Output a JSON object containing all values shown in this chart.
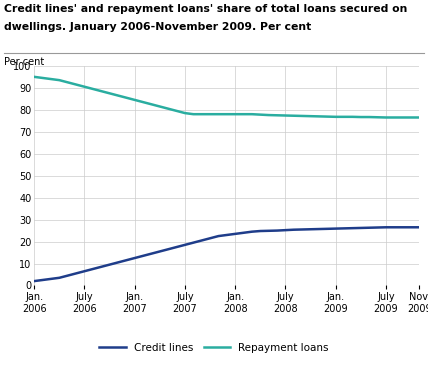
{
  "title_line1": "Credit lines' and repayment loans' share of total loans secured on",
  "title_line2": "dwellings. January 2006-November 2009. Per cent",
  "ylabel": "Per cent",
  "ylim": [
    0,
    100
  ],
  "yticks": [
    0,
    10,
    20,
    30,
    40,
    50,
    60,
    70,
    80,
    90,
    100
  ],
  "credit_lines_color": "#1f3d8a",
  "repayment_loans_color": "#2aada0",
  "background_color": "#ffffff",
  "grid_color": "#cccccc",
  "credit_lines": [
    2.0,
    2.5,
    3.0,
    3.5,
    4.5,
    5.5,
    6.5,
    7.5,
    8.5,
    9.5,
    10.5,
    11.5,
    12.5,
    13.5,
    14.5,
    15.5,
    16.5,
    17.5,
    18.5,
    19.5,
    20.5,
    21.5,
    22.5,
    23.0,
    23.5,
    24.0,
    24.5,
    24.8,
    24.9,
    25.0,
    25.2,
    25.4,
    25.5,
    25.6,
    25.7,
    25.8,
    25.9,
    26.0,
    26.1,
    26.2,
    26.3,
    26.4,
    26.5,
    26.5,
    26.5,
    26.5,
    26.5
  ],
  "repayment_loans": [
    95.0,
    94.5,
    94.0,
    93.5,
    92.5,
    91.5,
    90.5,
    89.5,
    88.5,
    87.5,
    86.5,
    85.5,
    84.5,
    83.5,
    82.5,
    81.5,
    80.5,
    79.5,
    78.5,
    78.0,
    78.0,
    78.0,
    78.0,
    78.0,
    78.0,
    78.0,
    78.0,
    77.8,
    77.6,
    77.5,
    77.4,
    77.3,
    77.2,
    77.1,
    77.0,
    76.9,
    76.8,
    76.8,
    76.8,
    76.7,
    76.7,
    76.6,
    76.5,
    76.5,
    76.5,
    76.5,
    76.5
  ],
  "x_tick_positions": [
    0,
    6,
    12,
    18,
    24,
    30,
    36,
    42,
    46
  ],
  "x_tick_labels": [
    "Jan.\n2006",
    "July\n2006",
    "Jan.\n2007",
    "July\n2007",
    "Jan.\n2008",
    "July\n2008",
    "Jan.\n2009",
    "July\n2009",
    "Nov.\n2009"
  ],
  "legend_labels": [
    "Credit lines",
    "Repayment loans"
  ],
  "line_width": 1.8
}
